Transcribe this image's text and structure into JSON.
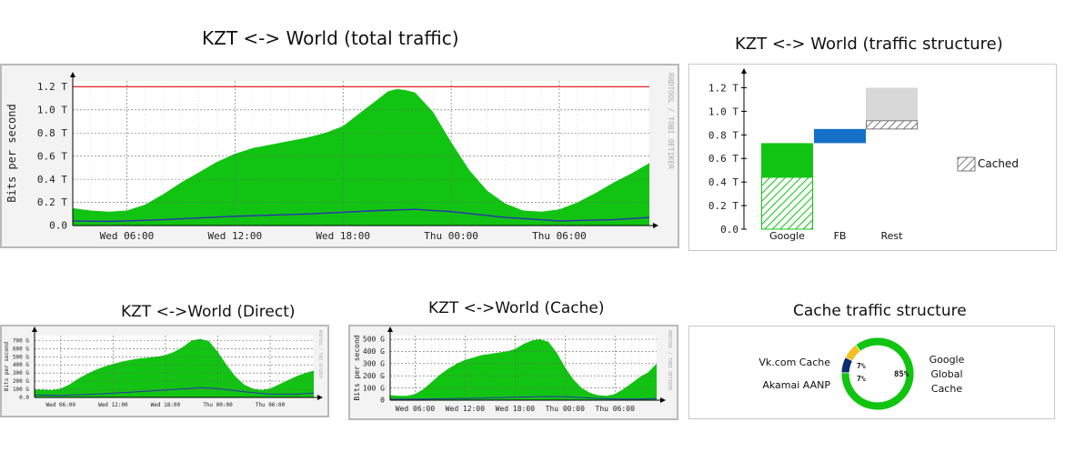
{
  "titles": {
    "total": "KZT <-> World (total traffic)",
    "structure": "KZT <-> World (traffic structure)",
    "direct": "KZT <->World (Direct)",
    "cache": "KZT <->World (Cache)",
    "cache_structure": "Cache traffic structure"
  },
  "rrd_watermark": "RRDTOOL / TOBI OETIKER",
  "colors": {
    "area": "#12c412",
    "line": "#2b2fb0",
    "limit": "#e02020",
    "fb": "#1470c8",
    "rest": "#d8d8d8",
    "donut_navy": "#0d2b6e",
    "donut_yellow": "#f0c020"
  },
  "chart_data": [
    {
      "id": "total",
      "type": "area",
      "ylabel": "Bits per second",
      "yticks": [
        "0.0",
        "0.2 T",
        "0.4 T",
        "0.6 T",
        "0.8 T",
        "1.0 T",
        "1.2 T"
      ],
      "ytick_values": [
        0,
        0.2,
        0.4,
        0.6,
        0.8,
        1.0,
        1.2
      ],
      "ylim": [
        0,
        1.25
      ],
      "xlim": [
        3,
        35
      ],
      "xticks": [
        "Wed 06:00",
        "Wed 12:00",
        "Wed 18:00",
        "Thu 00:00",
        "Thu 06:00"
      ],
      "xtick_values": [
        6,
        12,
        18,
        24,
        30
      ],
      "limit_line": 1.2,
      "series": [
        {
          "values_x": [
            3,
            4,
            5,
            6,
            7,
            8,
            9,
            10,
            11,
            12,
            13,
            14,
            15,
            16,
            17,
            18,
            19,
            20,
            20.5,
            21,
            21.5,
            22,
            23,
            24,
            25,
            26,
            27,
            28,
            29,
            30,
            31,
            32,
            33,
            34,
            35
          ],
          "values": [
            0.15,
            0.13,
            0.12,
            0.13,
            0.18,
            0.27,
            0.37,
            0.46,
            0.55,
            0.62,
            0.67,
            0.7,
            0.73,
            0.76,
            0.8,
            0.86,
            0.98,
            1.1,
            1.16,
            1.18,
            1.17,
            1.15,
            0.98,
            0.72,
            0.48,
            0.3,
            0.19,
            0.13,
            0.12,
            0.14,
            0.2,
            0.28,
            0.37,
            0.45,
            0.54
          ]
        },
        {
          "name": "",
          "values_x": [
            3,
            5,
            8,
            12,
            16,
            20,
            22,
            24,
            27,
            30,
            33,
            35
          ],
          "values": [
            0.04,
            0.035,
            0.05,
            0.08,
            0.1,
            0.13,
            0.14,
            0.12,
            0.07,
            0.04,
            0.05,
            0.07
          ]
        }
      ]
    },
    {
      "id": "structure",
      "type": "bar",
      "yticks": [
        "0.0",
        "0.2 T",
        "0.4 T",
        "0.6 T",
        "0.8 T",
        "1.0 T",
        "1.2 T"
      ],
      "ytick_values": [
        0,
        0.2,
        0.4,
        0.6,
        0.8,
        1.0,
        1.2
      ],
      "ylim": [
        0,
        1.25
      ],
      "categories": [
        "Google",
        "FB",
        "Rest"
      ],
      "bars": [
        {
          "category": "Google",
          "start": 0,
          "end": 0.73,
          "cached": 0.44
        },
        {
          "category": "FB",
          "start": 0.73,
          "end": 0.85,
          "cached": 0
        },
        {
          "category": "Rest",
          "start": 0.85,
          "end": 1.2,
          "cached": 0.07
        }
      ],
      "legend": "Cached"
    },
    {
      "id": "direct",
      "type": "area",
      "ylabel": "Bits per second",
      "yticks": [
        "0.0",
        "100 G",
        "200 G",
        "300 G",
        "400 G",
        "500 G",
        "600 G",
        "700 G"
      ],
      "ytick_values": [
        0,
        100,
        200,
        300,
        400,
        500,
        600,
        700
      ],
      "ylim": [
        0,
        760
      ],
      "xlim": [
        3,
        35
      ],
      "xticks": [
        "Wed 06:00",
        "Wed 12:00",
        "Wed 18:00",
        "Thu 00:00",
        "Thu 06:00"
      ],
      "xtick_values": [
        6,
        12,
        18,
        24,
        30
      ],
      "series": [
        {
          "values_x": [
            3,
            4,
            5,
            6,
            7,
            8,
            9,
            10,
            11,
            12,
            13,
            14,
            15,
            16,
            17,
            18,
            19,
            20,
            21,
            22,
            23,
            24,
            25,
            26,
            27,
            28,
            29,
            30,
            31,
            32,
            33,
            34,
            35
          ],
          "values": [
            100,
            95,
            90,
            110,
            160,
            230,
            290,
            340,
            380,
            410,
            440,
            460,
            480,
            490,
            500,
            520,
            560,
            620,
            700,
            720,
            690,
            560,
            400,
            260,
            160,
            110,
            90,
            110,
            160,
            210,
            260,
            300,
            330
          ]
        },
        {
          "name": "",
          "values_x": [
            3,
            6,
            10,
            14,
            18,
            22,
            24,
            27,
            30,
            33,
            35
          ],
          "values": [
            30,
            25,
            40,
            65,
            90,
            120,
            110,
            70,
            40,
            40,
            55
          ]
        }
      ]
    },
    {
      "id": "cache",
      "type": "area",
      "ylabel": "Bits per second",
      "yticks": [
        "0",
        "100 G",
        "200 G",
        "300 G",
        "400 G",
        "500 G"
      ],
      "ytick_values": [
        0,
        100,
        200,
        300,
        400,
        500
      ],
      "ylim": [
        0,
        530
      ],
      "xlim": [
        3,
        35
      ],
      "xticks": [
        "Wed 06:00",
        "Wed 12:00",
        "Wed 18:00",
        "Thu 00:00",
        "Thu 06:00"
      ],
      "xtick_values": [
        6,
        12,
        18,
        24,
        30
      ],
      "series": [
        {
          "values_x": [
            3,
            4,
            5,
            6,
            7,
            8,
            9,
            10,
            11,
            12,
            13,
            14,
            15,
            16,
            17,
            18,
            19,
            20,
            21,
            22,
            23,
            24,
            25,
            26,
            27,
            28,
            29,
            30,
            31,
            32,
            33,
            34,
            35
          ],
          "values": [
            40,
            35,
            35,
            50,
            90,
            150,
            210,
            260,
            300,
            330,
            350,
            370,
            380,
            390,
            400,
            420,
            460,
            490,
            500,
            480,
            390,
            270,
            170,
            100,
            60,
            40,
            35,
            50,
            90,
            140,
            190,
            230,
            300
          ]
        },
        {
          "name": "",
          "values_x": [
            3,
            6,
            10,
            14,
            18,
            22,
            24,
            27,
            30,
            33,
            35
          ],
          "values": [
            8,
            8,
            12,
            18,
            25,
            30,
            28,
            18,
            10,
            10,
            14
          ]
        }
      ]
    },
    {
      "id": "cache_structure",
      "type": "pie",
      "slices": [
        {
          "label": "Google Global Cache",
          "value": 85,
          "text": "85%"
        },
        {
          "label": "Akamai AANP",
          "value": 7,
          "text": "7%"
        },
        {
          "label": "Vk.com Cache",
          "value": 7,
          "text": "7%"
        }
      ],
      "labels": {
        "vk": "Vk.com Cache",
        "akamai": "Akamai AANP",
        "google": [
          "Google",
          "Global",
          "Cache"
        ]
      }
    }
  ]
}
